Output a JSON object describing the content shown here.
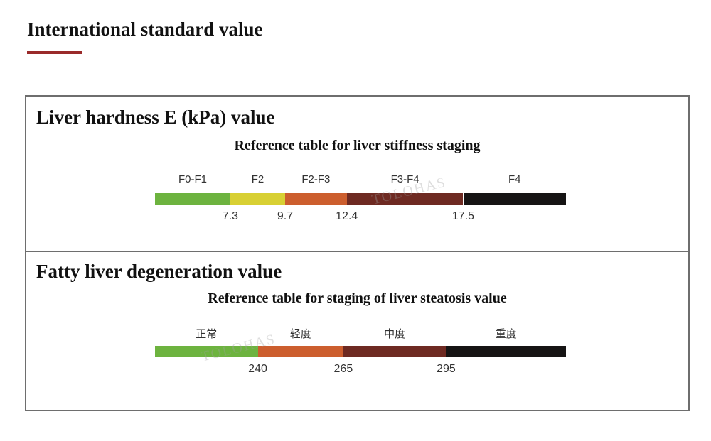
{
  "page": {
    "title": "International standard value",
    "accent_color": "#9a2a2a",
    "watermark": "TOLOHAS"
  },
  "stiffness": {
    "heading": "Liver hardness E (kPa) value",
    "subtitle": "Reference table for liver stiffness staging",
    "scale_min": 4.0,
    "scale_max": 22.0,
    "stages": [
      {
        "label": "F0-F1",
        "from": 4.0,
        "to": 7.3,
        "color": "#6db33f"
      },
      {
        "label": "F2",
        "from": 7.3,
        "to": 9.7,
        "color": "#d8d034"
      },
      {
        "label": "F2-F3",
        "from": 9.7,
        "to": 12.4,
        "color": "#cc5e2e"
      },
      {
        "label": "F3-F4",
        "from": 12.4,
        "to": 17.5,
        "color": "#6e2a22"
      },
      {
        "label": "F4",
        "from": 17.5,
        "to": 22.0,
        "color": "#161414"
      }
    ],
    "ticks": [
      "7.3",
      "9.7",
      "12.4",
      "17.5"
    ]
  },
  "steatosis": {
    "heading": "Fatty liver degeneration value",
    "subtitle": "Reference table for staging of liver steatosis value",
    "scale_min": 210,
    "scale_max": 330,
    "stages": [
      {
        "label": "正常",
        "from": 210,
        "to": 240,
        "color": "#6db33f"
      },
      {
        "label": "轻度",
        "from": 240,
        "to": 265,
        "color": "#cc5e2e"
      },
      {
        "label": "中度",
        "from": 265,
        "to": 295,
        "color": "#6e2a22"
      },
      {
        "label": "重度",
        "from": 295,
        "to": 330,
        "color": "#161414"
      }
    ],
    "ticks": [
      "240",
      "265",
      "295"
    ]
  }
}
